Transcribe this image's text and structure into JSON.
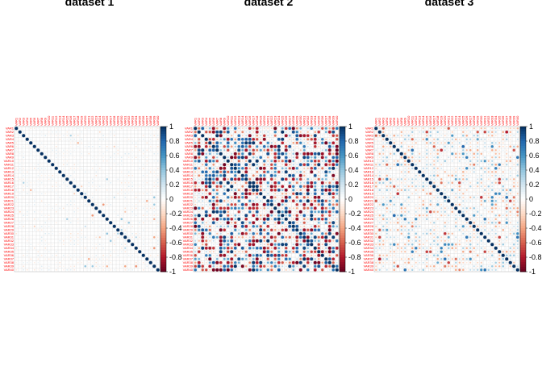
{
  "colors": {
    "positive": "#053061",
    "negative": "#67001f",
    "grid": "#b0b0b0",
    "label": "#ff0000"
  },
  "colorbar": {
    "ticks": [
      "1",
      "0.8",
      "0.6",
      "0.4",
      "0.2",
      "0",
      "-0.2",
      "-0.4",
      "-0.6",
      "-0.8",
      "-1"
    ]
  },
  "chart_data": [
    {
      "type": "heatmap",
      "title": "dataset 1",
      "variables": [
        "VAR1",
        "VAR2",
        "VAR3",
        "VAR4",
        "VAR5",
        "VAR6",
        "VAR7",
        "VAR8",
        "VAR9",
        "VAR10",
        "VAR11",
        "VAR12",
        "VAR13",
        "VAR14",
        "VAR15",
        "VAR16",
        "VAR17",
        "VAR18",
        "VAR19",
        "VAR20",
        "VAR21",
        "VAR22",
        "VAR23",
        "VAR24",
        "VAR25",
        "VAR26",
        "VAR27",
        "VAR28",
        "VAR29",
        "VAR30",
        "VAR31",
        "VAR32",
        "VAR33",
        "VAR34",
        "VAR35",
        "VAR36",
        "VAR37",
        "VAR38",
        "VAR39",
        "VAR40"
      ],
      "value_range": [
        -1,
        1
      ],
      "diagonal": 1,
      "offdiag_strength": "weak (|r| < 0.3)",
      "seed": 11,
      "legend": "right"
    },
    {
      "type": "heatmap",
      "title": "dataset 2",
      "variables": [
        "VAR1",
        "VAR2",
        "VAR3",
        "VAR4",
        "VAR5",
        "VAR6",
        "VAR7",
        "VAR8",
        "VAR9",
        "VAR10",
        "VAR11",
        "VAR12",
        "VAR13",
        "VAR14",
        "VAR15",
        "VAR16",
        "VAR17",
        "VAR18",
        "VAR19",
        "VAR20",
        "VAR21",
        "VAR22",
        "VAR23",
        "VAR24",
        "VAR25",
        "VAR26",
        "VAR27",
        "VAR28",
        "VAR29",
        "VAR30",
        "VAR31",
        "VAR32",
        "VAR33",
        "VAR34",
        "VAR35",
        "VAR36",
        "VAR37",
        "VAR38",
        "VAR39",
        "VAR40"
      ],
      "value_range": [
        -1,
        1
      ],
      "diagonal": 1,
      "offdiag_strength": "strong (|r| up to 1)",
      "seed": 23,
      "legend": "right"
    },
    {
      "type": "heatmap",
      "title": "dataset 3",
      "variables": [
        "VAR1",
        "VAR2",
        "VAR3",
        "VAR4",
        "VAR5",
        "VAR6",
        "VAR7",
        "VAR8",
        "VAR9",
        "VAR10",
        "VAR11",
        "VAR12",
        "VAR13",
        "VAR14",
        "VAR15",
        "VAR16",
        "VAR17",
        "VAR18",
        "VAR19",
        "VAR20",
        "VAR21",
        "VAR22",
        "VAR23",
        "VAR24",
        "VAR25",
        "VAR26",
        "VAR27",
        "VAR28",
        "VAR29",
        "VAR30",
        "VAR31",
        "VAR32",
        "VAR33",
        "VAR34",
        "VAR35",
        "VAR36",
        "VAR37",
        "VAR38",
        "VAR39",
        "VAR40"
      ],
      "value_range": [
        -1,
        1
      ],
      "diagonal": 1,
      "offdiag_strength": "moderate (|r| up to 0.6)",
      "seed": 37,
      "legend": "right"
    }
  ]
}
